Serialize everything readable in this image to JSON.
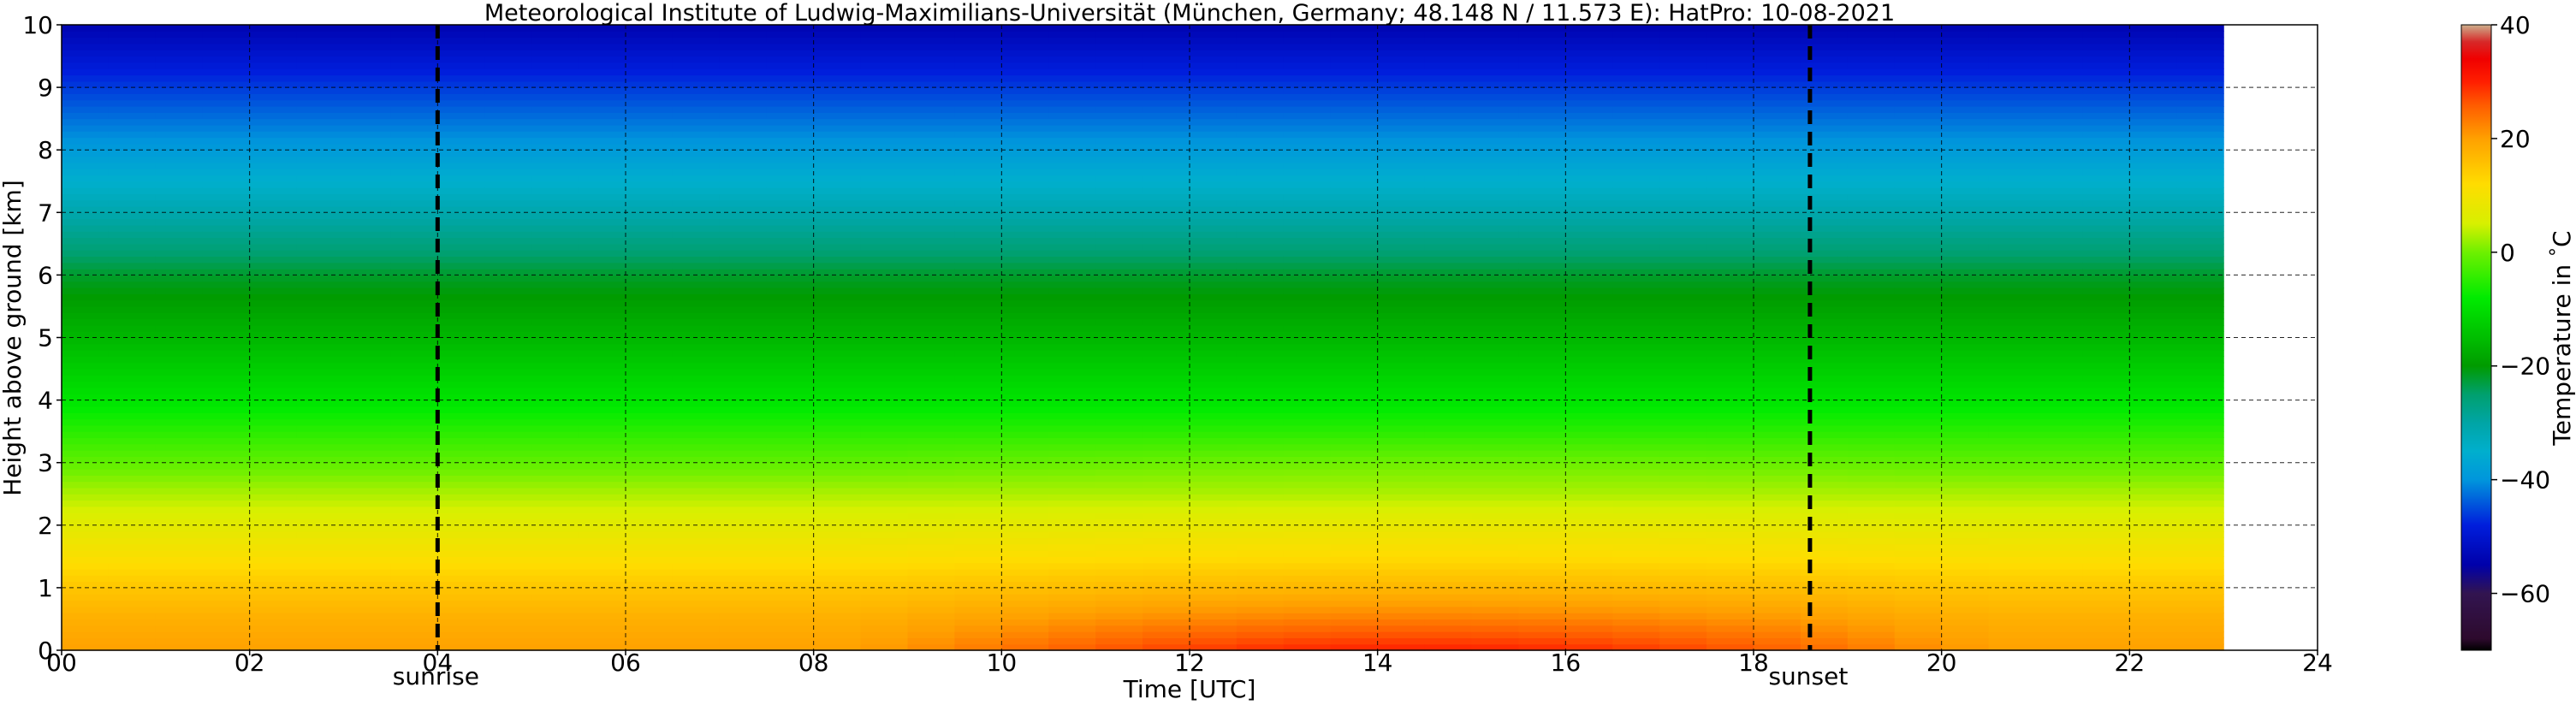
{
  "chart_data": {
    "type": "heatmap",
    "title": "Meteorological Institute of Ludwig-Maximilians-Universität (München, Germany; 48.148 N / 11.573 E):    HatPro: 10-08-2021",
    "xlabel": "Time [UTC]",
    "ylabel": "Height above ground [km]",
    "xlim": [
      0,
      24
    ],
    "ylim": [
      0,
      10
    ],
    "x_ticks": [
      "00",
      "02",
      "04",
      "06",
      "08",
      "10",
      "12",
      "14",
      "16",
      "18",
      "20",
      "22",
      "24"
    ],
    "y_ticks": [
      "0",
      "1",
      "2",
      "3",
      "4",
      "5",
      "6",
      "7",
      "8",
      "9",
      "10"
    ],
    "grid": true,
    "data_x_range": [
      0,
      23
    ],
    "heights_km": [
      0,
      0.5,
      1,
      1.5,
      2,
      2.5,
      3,
      3.5,
      4,
      5,
      6,
      7,
      8,
      9,
      10
    ],
    "temperature_profile_noon_c": [
      30,
      23,
      17,
      12,
      8,
      3,
      0,
      -5,
      -9,
      -16,
      -22,
      -31,
      -39,
      -46,
      -54
    ],
    "temperature_profile_night_c": [
      20,
      18,
      15,
      11,
      7,
      3,
      -1,
      -5,
      -9,
      -16,
      -22,
      -31,
      -39,
      -46,
      -54
    ],
    "markers": [
      {
        "label": "sunrise",
        "time": 4.0
      },
      {
        "label": "sunset",
        "time": 18.6
      }
    ],
    "colorbar": {
      "label": "Temperature in $^\\circ$C",
      "range": [
        -70,
        40
      ],
      "ticks": [
        "40",
        "20",
        "0",
        "−20",
        "−40",
        "−60"
      ],
      "tick_values": [
        40,
        20,
        0,
        -20,
        -40,
        -60
      ]
    }
  }
}
